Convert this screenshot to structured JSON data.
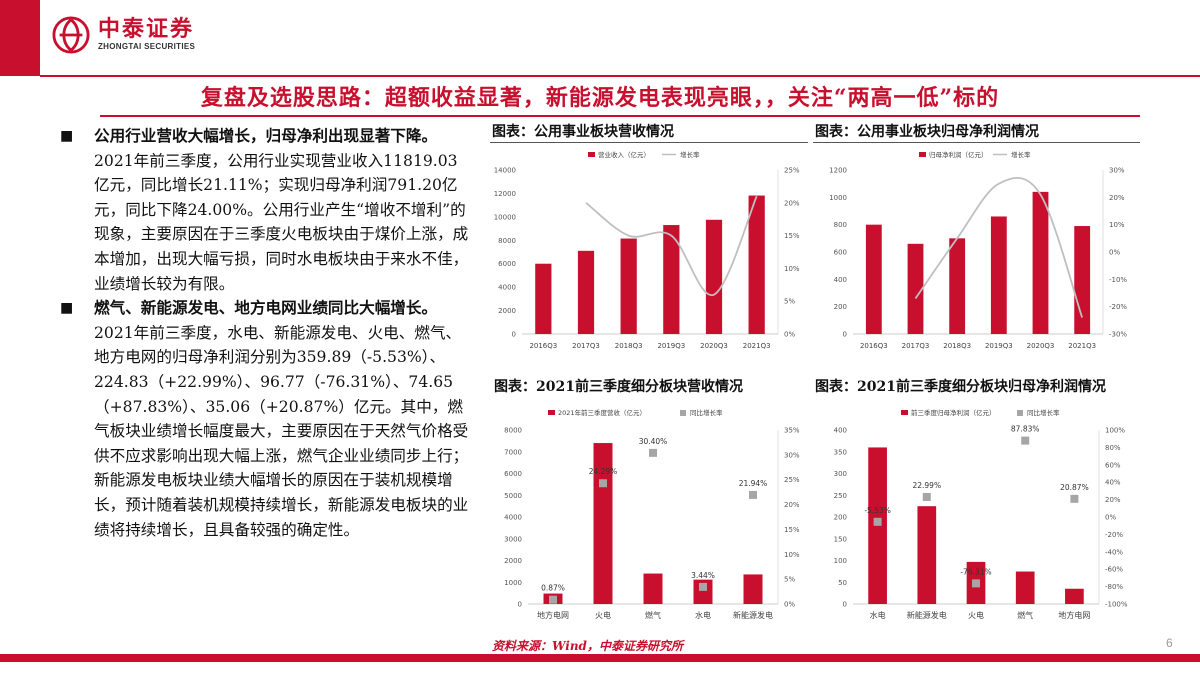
{
  "header": {
    "logo_cn": "中泰证券",
    "logo_en": "ZHONGTAI SECURITIES",
    "title": "复盘及选股思路：超额收益显著，新能源发电表现亮眼，，关注“两高一低”标的"
  },
  "bullets": [
    {
      "bold": "公用行业营收大幅增长，归母净利出现显著下降。",
      "text": "2021年前三季度，公用行业实现营业收入11819.03亿元，同比增长21.11%；实现归母净利润791.20亿元，同比下降24.00%。公用行业产生“增收不增利”的现象，主要原因在于三季度火电板块由于煤价上涨，成本增加，出现大幅亏损，同时水电板块由于来水不佳，业绩增长较为有限。"
    },
    {
      "bold": "燃气、新能源发电、地方电网业绩同比大幅增长。",
      "text": "2021年前三季度，水电、新能源发电、火电、燃气、地方电网的归母净利润分别为359.89（-5.53%）、224.83（+22.99%）、96.77（-76.31%）、74.65（+87.83%）、35.06（+20.87%）亿元。其中，燃气板块业绩增长幅度最大，主要原因在于天然气价格受供不应求影响出现大幅上涨，燃气企业业绩同步上行；新能源发电板块业绩大幅增长的原因在于装机规模增长，预计随着装机规模持续增长，新能源发电板块的业绩将持续增长，且具备较强的确定性。"
    }
  ],
  "source": "资料来源：Wind，中泰证券研究所",
  "page_number": "6",
  "colors": {
    "accent": "#c8102e",
    "line": "#bfbfbf",
    "marker": "#a6a6a6"
  },
  "chart_data": [
    {
      "id": "c1",
      "panel_title": "图表：公用事业板块营收情况",
      "type": "bar+line",
      "categories": [
        "2016Q3",
        "2017Q3",
        "2018Q3",
        "2019Q3",
        "2020Q3",
        "2021Q3"
      ],
      "series": [
        {
          "name": "营业收入（亿元）",
          "axis": "left",
          "values": [
            6000,
            7100,
            8150,
            9300,
            9750,
            11819
          ]
        },
        {
          "name": "增长率",
          "axis": "right",
          "values": [
            null,
            20,
            15,
            15,
            6,
            21
          ]
        }
      ],
      "ylim": [
        0,
        14000
      ],
      "yticks": [
        0,
        2000,
        4000,
        6000,
        8000,
        10000,
        12000,
        14000
      ],
      "y2lim": [
        0,
        25
      ],
      "y2ticks": [
        "0%",
        "5%",
        "10%",
        "15%",
        "20%",
        "25%"
      ]
    },
    {
      "id": "c2",
      "panel_title": "图表：公用事业板块归母净利润情况",
      "type": "bar+line",
      "categories": [
        "2016Q3",
        "2017Q3",
        "2018Q3",
        "2019Q3",
        "2020Q3",
        "2021Q3"
      ],
      "series": [
        {
          "name": "归母净利润（亿元）",
          "axis": "left",
          "values": [
            800,
            660,
            700,
            860,
            1040,
            790
          ]
        },
        {
          "name": "增长率",
          "axis": "right",
          "values": [
            null,
            -17,
            5,
            25,
            21,
            -24
          ]
        }
      ],
      "ylim": [
        0,
        1200
      ],
      "yticks": [
        0,
        200,
        400,
        600,
        800,
        1000,
        1200
      ],
      "y2lim": [
        -30,
        30
      ],
      "y2ticks": [
        "-30%",
        "-20%",
        "-10%",
        "0%",
        "10%",
        "20%",
        "30%"
      ]
    },
    {
      "id": "c3",
      "panel_title": "图表：2021前三季度细分板块营收情况",
      "type": "bar+scatter",
      "categories": [
        "地方电网",
        "火电",
        "燃气",
        "水电",
        "新能源发电"
      ],
      "series": [
        {
          "name": "2021年前三季度营收（亿元）",
          "axis": "left",
          "values": [
            480,
            7400,
            1400,
            1120,
            1360
          ]
        },
        {
          "name": "同比增长率",
          "axis": "right",
          "values": [
            0.87,
            24.29,
            30.4,
            3.44,
            21.94
          ],
          "labels": [
            "0.87%",
            "24.29%",
            "30.40%",
            "3.44%",
            "21.94%"
          ]
        }
      ],
      "ylim": [
        0,
        8000
      ],
      "yticks": [
        0,
        1000,
        2000,
        3000,
        4000,
        5000,
        6000,
        7000,
        8000
      ],
      "y2lim": [
        0,
        35
      ],
      "y2ticks": [
        "0%",
        "5%",
        "10%",
        "15%",
        "20%",
        "25%",
        "30%",
        "35%"
      ]
    },
    {
      "id": "c4",
      "panel_title": "图表：2021前三季度细分板块归母净利润情况",
      "type": "bar+scatter",
      "categories": [
        "水电",
        "新能源发电",
        "火电",
        "燃气",
        "地方电网"
      ],
      "series": [
        {
          "name": "前三季度归母净利润（亿元）",
          "axis": "left",
          "values": [
            359.89,
            224.83,
            96.77,
            74.65,
            35.06
          ]
        },
        {
          "name": "同比增长率",
          "axis": "right",
          "values": [
            -5.53,
            22.99,
            -76.31,
            87.83,
            20.87
          ],
          "labels": [
            "-5.53%",
            "22.99%",
            "-76.31%",
            "87.83%",
            "20.87%"
          ]
        }
      ],
      "ylim": [
        0,
        400
      ],
      "yticks": [
        0,
        50,
        100,
        150,
        200,
        250,
        300,
        350,
        400
      ],
      "y2lim": [
        -100,
        100
      ],
      "y2ticks": [
        "-100%",
        "-80%",
        "-60%",
        "-40%",
        "-20%",
        "0%",
        "20%",
        "40%",
        "60%",
        "80%",
        "100%"
      ]
    }
  ]
}
